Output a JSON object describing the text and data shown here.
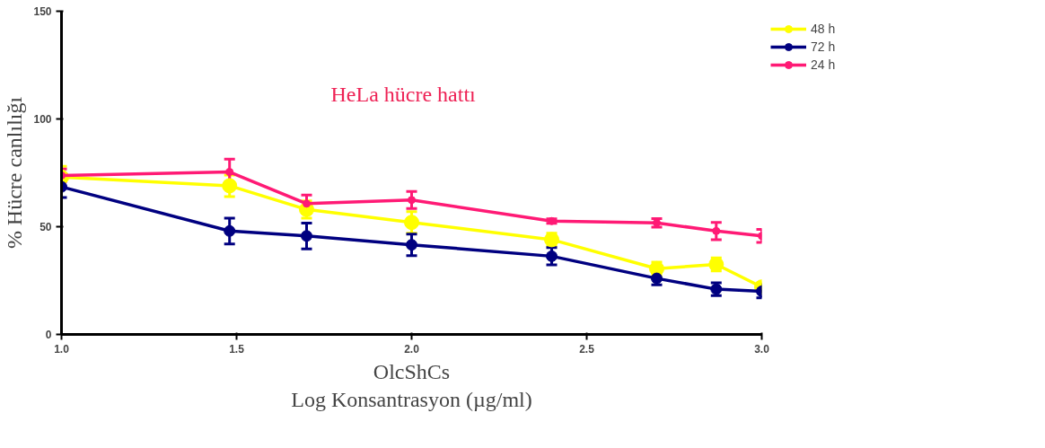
{
  "chart_data": {
    "type": "line",
    "xlabel": "OlcShCs\nLog Konsantrasyon (µg/ml)",
    "ylabel": "% Hücre canlılığı",
    "annotations": [
      "HeLa hücre hattı"
    ],
    "x": [
      1.0,
      1.48,
      1.7,
      2.0,
      2.4,
      2.7,
      2.87,
      3.0
    ],
    "xlim": [
      1.0,
      3.0
    ],
    "xticks": [
      {
        "value": 1.0,
        "label": "1.0"
      },
      {
        "value": 1.5,
        "label": "1.5"
      },
      {
        "value": 2.0,
        "label": "2.0"
      },
      {
        "value": 2.5,
        "label": "2.5"
      },
      {
        "value": 3.0,
        "label": "3.0"
      }
    ],
    "ylim": [
      0,
      150
    ],
    "yticks": [
      0,
      50,
      100,
      150
    ],
    "grid": false,
    "legend": "top right",
    "marker": "circle",
    "line_style": "solid",
    "series": [
      {
        "name": "48 h",
        "color": "#ffff00",
        "values": [
          73,
          69,
          58,
          52,
          44,
          30.5,
          32.5,
          22
        ],
        "errors": [
          5,
          5,
          4,
          5,
          3,
          3,
          3,
          2
        ]
      },
      {
        "name": "72 h",
        "color": "#000080",
        "values": [
          68.5,
          48,
          45.7,
          41.6,
          36.3,
          26,
          21,
          20
        ],
        "errors": [
          5,
          6,
          6,
          5,
          4,
          3,
          3,
          3
        ]
      },
      {
        "name": "24 h",
        "color": "#ff1a75",
        "values": [
          73.8,
          75.4,
          60.7,
          62.4,
          52.6,
          51.8,
          48,
          45.7
        ],
        "errors": [
          3,
          6,
          4,
          4,
          1,
          2,
          4,
          3
        ]
      }
    ]
  }
}
